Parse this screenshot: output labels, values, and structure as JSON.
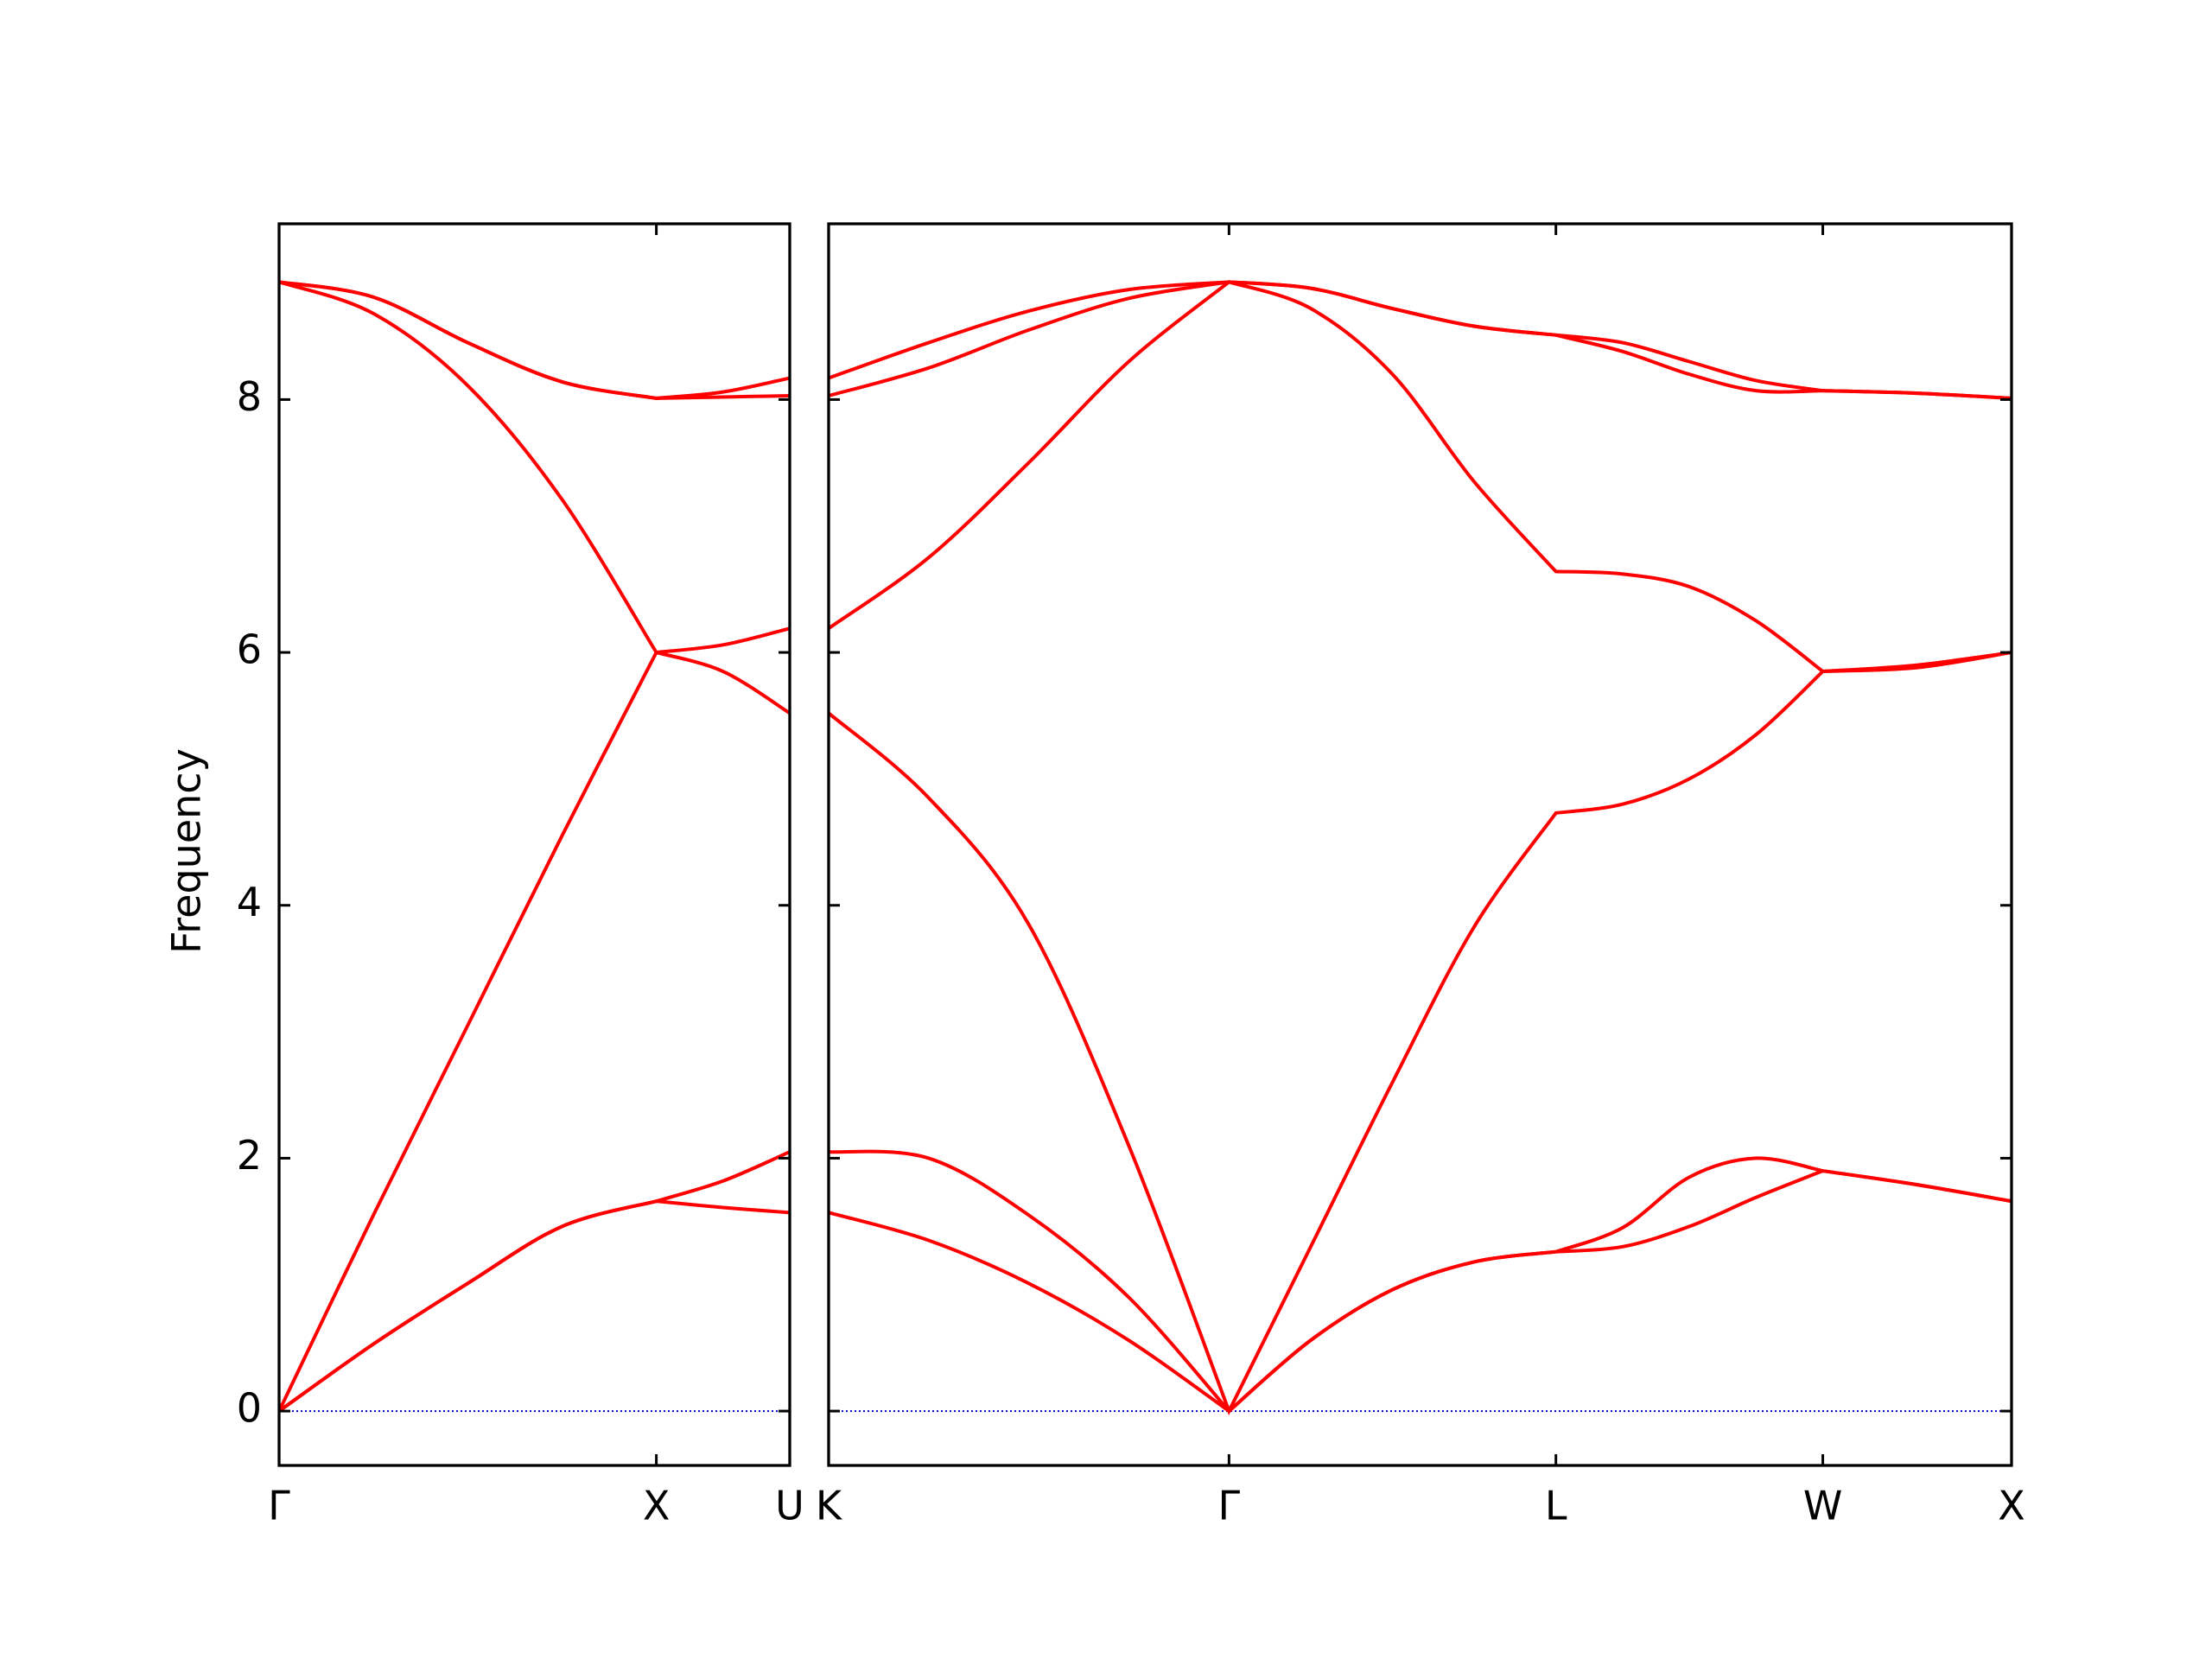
{
  "chart_data": [
    {
      "type": "line",
      "y_label": "Frequency",
      "color": "#ff0000",
      "zero_line_color": "#0000cc",
      "y_tick_labels": true,
      "x": [
        0,
        0.25,
        0.5,
        0.75,
        1,
        1.1768,
        1.3536
      ],
      "xlim": [
        0,
        1.3536
      ],
      "xticks": [
        {
          "value": 0,
          "label": "Γ"
        },
        {
          "value": 1,
          "label": "X"
        },
        {
          "value": 1.3536,
          "label": "U"
        }
      ],
      "ylim": [
        -0.43,
        9.39
      ],
      "yticks": [
        0,
        2,
        4,
        6,
        8
      ],
      "series": [
        {
          "values": [
            0,
            0.53,
            1.01,
            1.46,
            1.66,
            1.61,
            1.57
          ]
        },
        {
          "values": [
            0,
            0.53,
            1.01,
            1.46,
            1.66,
            1.82,
            2.05
          ]
        },
        {
          "values": [
            0,
            1.55,
            3.05,
            4.55,
            6.0,
            5.85,
            5.52
          ]
        },
        {
          "values": [
            8.93,
            8.68,
            8.11,
            7.21,
            6.0,
            6.06,
            6.19
          ]
        },
        {
          "values": [
            8.93,
            8.81,
            8.45,
            8.14,
            8.01,
            8.02,
            8.03
          ]
        },
        {
          "values": [
            8.93,
            8.81,
            8.45,
            8.14,
            8.01,
            8.06,
            8.17
          ]
        }
      ]
    },
    {
      "type": "line",
      "color": "#ff0000",
      "zero_line_color": "#0000cc",
      "y_tick_labels": false,
      "x": [
        0,
        0.265,
        0.53,
        0.795,
        1.0607,
        1.2772,
        1.4937,
        1.7102,
        1.9267,
        2.1035,
        2.2802,
        2.457,
        2.6338,
        2.8838,
        3.1338
      ],
      "xlim": [
        0,
        3.1338
      ],
      "xticks": [
        {
          "value": 0,
          "label": "K"
        },
        {
          "value": 1.0607,
          "label": "Γ"
        },
        {
          "value": 1.9267,
          "label": "L"
        },
        {
          "value": 2.6338,
          "label": "W"
        },
        {
          "value": 3.1338,
          "label": "X"
        }
      ],
      "ylim": [
        -0.43,
        9.39
      ],
      "yticks": [
        0,
        2,
        4,
        6,
        8
      ],
      "series": [
        {
          "values": [
            1.57,
            1.35,
            1.01,
            0.56,
            0,
            0.56,
            0.96,
            1.18,
            1.26,
            1.3,
            1.46,
            1.69,
            1.9,
            1.79,
            1.66
          ]
        },
        {
          "values": [
            2.05,
            2.0,
            1.55,
            0.9,
            0,
            0.56,
            0.96,
            1.18,
            1.26,
            1.45,
            1.85,
            2.0,
            1.9,
            1.79,
            1.66
          ]
        },
        {
          "values": [
            5.52,
            4.85,
            3.85,
            2.1,
            0,
            1.3,
            2.6,
            3.83,
            4.73,
            4.8,
            5.0,
            5.35,
            5.85,
            5.88,
            6.0
          ]
        },
        {
          "values": [
            6.19,
            6.75,
            7.5,
            8.3,
            8.93,
            8.72,
            8.2,
            7.35,
            6.64,
            6.62,
            6.52,
            6.25,
            5.85,
            5.9,
            6.0
          ]
        },
        {
          "values": [
            8.03,
            8.25,
            8.55,
            8.8,
            8.93,
            8.88,
            8.72,
            8.58,
            8.51,
            8.38,
            8.2,
            8.07,
            8.07,
            8.05,
            8.01
          ]
        },
        {
          "values": [
            8.17,
            8.45,
            8.7,
            8.87,
            8.93,
            8.88,
            8.72,
            8.58,
            8.51,
            8.45,
            8.3,
            8.15,
            8.07,
            8.05,
            8.01
          ]
        }
      ]
    }
  ]
}
